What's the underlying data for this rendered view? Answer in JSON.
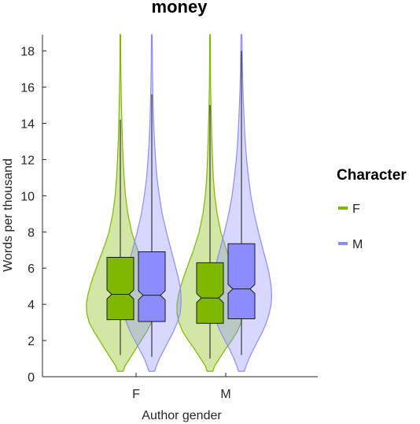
{
  "chart_data": {
    "type": "violin",
    "title": "money",
    "xlabel": "Author gender",
    "ylabel": "Words per thousand",
    "categories": [
      "F",
      "M"
    ],
    "ylim": [
      0,
      18.9
    ],
    "yticks": [
      0,
      2,
      4,
      6,
      8,
      10,
      12,
      14,
      16,
      18
    ],
    "grid": false,
    "legend": {
      "title": "Character",
      "position": "right"
    },
    "series": [
      {
        "name": "F",
        "color": "#7fb800",
        "boxes": [
          {
            "category": "F",
            "q1": 3.15,
            "median": 4.55,
            "q3": 6.6,
            "notch_low": 4.3,
            "notch_high": 4.8,
            "whisker_low": 1.2,
            "whisker_high": 14.2,
            "max": 18.9
          },
          {
            "category": "M",
            "q1": 2.95,
            "median": 4.35,
            "q3": 6.3,
            "notch_low": 4.1,
            "notch_high": 4.6,
            "whisker_low": 1.0,
            "whisker_high": 15.0,
            "max": 18.9
          }
        ],
        "violins": [
          [
            [
              0.3,
              0.3
            ],
            [
              0.6,
              0.5
            ],
            [
              1.0,
              1.0
            ],
            [
              1.5,
              1.6
            ],
            [
              2.0,
              2.2
            ],
            [
              2.5,
              2.8
            ],
            [
              3.0,
              3.3
            ],
            [
              3.5,
              3.55
            ],
            [
              4.0,
              3.6
            ],
            [
              4.5,
              3.45
            ],
            [
              5.0,
              3.2
            ],
            [
              5.5,
              2.9
            ],
            [
              6.0,
              2.55
            ],
            [
              6.5,
              2.2
            ],
            [
              7.0,
              1.85
            ],
            [
              7.5,
              1.5
            ],
            [
              8.0,
              1.2
            ],
            [
              9.0,
              0.8
            ],
            [
              10.0,
              0.55
            ],
            [
              11.0,
              0.4
            ],
            [
              12.0,
              0.3
            ],
            [
              13.0,
              0.22
            ],
            [
              14.0,
              0.17
            ],
            [
              15.0,
              0.12
            ],
            [
              16.0,
              0.08
            ],
            [
              17.0,
              0.05
            ],
            [
              18.9,
              0.03
            ]
          ],
          [
            [
              0.3,
              0.3
            ],
            [
              0.6,
              0.5
            ],
            [
              1.0,
              1.0
            ],
            [
              1.5,
              1.6
            ],
            [
              2.0,
              2.3
            ],
            [
              2.5,
              2.9
            ],
            [
              3.0,
              3.3
            ],
            [
              3.5,
              3.5
            ],
            [
              4.0,
              3.5
            ],
            [
              4.5,
              3.35
            ],
            [
              5.0,
              3.1
            ],
            [
              5.5,
              2.8
            ],
            [
              6.0,
              2.45
            ],
            [
              6.5,
              2.1
            ],
            [
              7.0,
              1.75
            ],
            [
              7.5,
              1.45
            ],
            [
              8.0,
              1.15
            ],
            [
              9.0,
              0.75
            ],
            [
              10.0,
              0.5
            ],
            [
              11.0,
              0.35
            ],
            [
              12.0,
              0.27
            ],
            [
              13.0,
              0.2
            ],
            [
              14.0,
              0.15
            ],
            [
              15.0,
              0.1
            ],
            [
              16.0,
              0.07
            ],
            [
              17.0,
              0.05
            ],
            [
              18.9,
              0.03
            ]
          ]
        ]
      },
      {
        "name": "M",
        "color": "#8c8cff",
        "boxes": [
          {
            "category": "F",
            "q1": 3.05,
            "median": 4.5,
            "q3": 6.9,
            "notch_low": 4.25,
            "notch_high": 4.75,
            "whisker_low": 1.1,
            "whisker_high": 15.6,
            "max": 18.9
          },
          {
            "category": "M",
            "q1": 3.2,
            "median": 4.85,
            "q3": 7.35,
            "notch_low": 4.6,
            "notch_high": 5.1,
            "whisker_low": 1.2,
            "whisker_high": 18.0,
            "max": 18.9
          }
        ],
        "violins": [
          [
            [
              0.3,
              0.3
            ],
            [
              0.6,
              0.5
            ],
            [
              1.0,
              0.8
            ],
            [
              1.5,
              1.3
            ],
            [
              2.0,
              1.8
            ],
            [
              2.5,
              2.3
            ],
            [
              3.0,
              2.7
            ],
            [
              3.5,
              3.0
            ],
            [
              4.0,
              3.1
            ],
            [
              4.5,
              3.1
            ],
            [
              5.0,
              3.0
            ],
            [
              5.5,
              2.8
            ],
            [
              6.0,
              2.55
            ],
            [
              6.5,
              2.3
            ],
            [
              7.0,
              2.05
            ],
            [
              7.5,
              1.8
            ],
            [
              8.0,
              1.55
            ],
            [
              9.0,
              1.1
            ],
            [
              10.0,
              0.8
            ],
            [
              11.0,
              0.55
            ],
            [
              12.0,
              0.4
            ],
            [
              13.0,
              0.28
            ],
            [
              14.0,
              0.2
            ],
            [
              15.0,
              0.14
            ],
            [
              16.0,
              0.1
            ],
            [
              17.0,
              0.07
            ],
            [
              18.9,
              0.04
            ]
          ],
          [
            [
              0.3,
              0.3
            ],
            [
              0.6,
              0.5
            ],
            [
              1.0,
              0.8
            ],
            [
              1.5,
              1.25
            ],
            [
              2.0,
              1.75
            ],
            [
              2.5,
              2.25
            ],
            [
              3.0,
              2.65
            ],
            [
              3.5,
              2.95
            ],
            [
              4.0,
              3.15
            ],
            [
              4.5,
              3.2
            ],
            [
              5.0,
              3.15
            ],
            [
              5.5,
              3.0
            ],
            [
              6.0,
              2.8
            ],
            [
              6.5,
              2.55
            ],
            [
              7.0,
              2.3
            ],
            [
              7.5,
              2.05
            ],
            [
              8.0,
              1.8
            ],
            [
              9.0,
              1.35
            ],
            [
              10.0,
              1.0
            ],
            [
              11.0,
              0.75
            ],
            [
              12.0,
              0.55
            ],
            [
              13.0,
              0.4
            ],
            [
              14.0,
              0.3
            ],
            [
              15.0,
              0.22
            ],
            [
              16.0,
              0.15
            ],
            [
              17.0,
              0.1
            ],
            [
              18.9,
              0.05
            ]
          ]
        ]
      }
    ]
  }
}
